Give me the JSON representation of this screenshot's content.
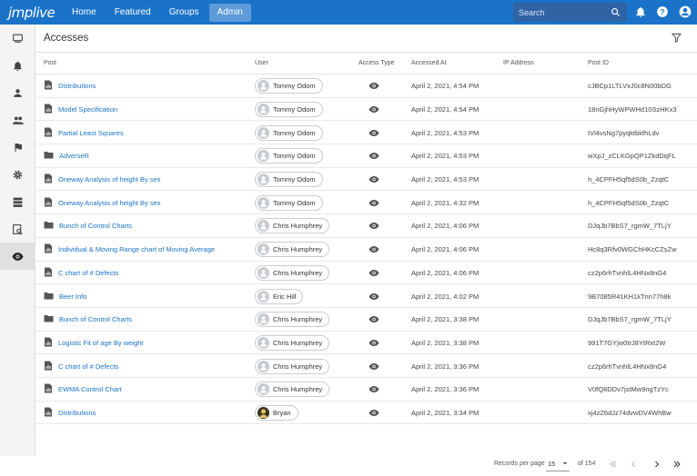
{
  "app": {
    "logo": "jmplive"
  },
  "nav": [
    {
      "label": "Home",
      "active": false
    },
    {
      "label": "Featured",
      "active": false
    },
    {
      "label": "Groups",
      "active": false
    },
    {
      "label": "Admin",
      "active": true
    }
  ],
  "search": {
    "placeholder": "Search"
  },
  "page": {
    "title": "Accesses"
  },
  "columns": {
    "post": "Post",
    "user": "User",
    "access_type": "Access Type",
    "accessed_at": "Accessed At",
    "ip": "IP Address",
    "post_id": "Post ID"
  },
  "rows": [
    {
      "icon": "report-icon",
      "post": "Distributions",
      "user": "Tommy Odom",
      "avatar": "default",
      "at": "April 2, 2021, 4:54 PM",
      "ip": "",
      "pid": "cJBCp1LTLVxJ0c8N00bDG"
    },
    {
      "icon": "report-icon",
      "post": "Model Specification",
      "user": "Tommy Odom",
      "avatar": "default",
      "at": "April 2, 2021, 4:54 PM",
      "ip": "",
      "pid": "18nGjhHyWPWHd10SzHKx3"
    },
    {
      "icon": "report-icon",
      "post": "Partial Least Squares",
      "user": "Tommy Odom",
      "avatar": "default",
      "at": "April 2, 2021, 4:53 PM",
      "ip": "",
      "pid": "tVl4vsNg7pyqktbkfhLdv"
    },
    {
      "icon": "folder-icon",
      "post": "AdverseR",
      "user": "Tommy Odom",
      "avatar": "default",
      "at": "April 2, 2021, 4:53 PM",
      "ip": "",
      "pid": "wXpJ_zCLKGpQP1ZkdDqFL"
    },
    {
      "icon": "report-icon",
      "post": "Oneway Analysis of height By sex",
      "user": "Tommy Odom",
      "avatar": "default",
      "at": "April 2, 2021, 4:53 PM",
      "ip": "",
      "pid": "h_4CPFH5qf5dS0b_ZzqtC"
    },
    {
      "icon": "report-icon",
      "post": "Oneway Analysis of height By sex",
      "user": "Tommy Odom",
      "avatar": "default",
      "at": "April 2, 2021, 4:32 PM",
      "ip": "",
      "pid": "h_4CPFH5qf5dS0b_ZzqtC"
    },
    {
      "icon": "folder-icon",
      "post": "Bunch of Control Charts",
      "user": "Chris Humphrey",
      "avatar": "default",
      "at": "April 2, 2021, 4:06 PM",
      "ip": "",
      "pid": "DJqJb7BbS7_rgmW_7TLjY"
    },
    {
      "icon": "report-icon",
      "post": "Individual & Moving Range chart of Moving Average",
      "user": "Chris Humphrey",
      "avatar": "default",
      "at": "April 2, 2021, 4:06 PM",
      "ip": "",
      "pid": "Hc8q3Rfv0WGChHKcCZsZw"
    },
    {
      "icon": "report-icon",
      "post": "C chart of # Defects",
      "user": "Chris Humphrey",
      "avatar": "default",
      "at": "April 2, 2021, 4:06 PM",
      "ip": "",
      "pid": "cz2p6rhTvnhlL4HNx8nG4"
    },
    {
      "icon": "folder-icon",
      "post": "Beer Info",
      "user": "Eric Hill",
      "avatar": "default",
      "at": "April 2, 2021, 4:02 PM",
      "ip": "",
      "pid": "9B7085R41KH1kTnn77h8k"
    },
    {
      "icon": "folder-icon",
      "post": "Bunch of Control Charts",
      "user": "Chris Humphrey",
      "avatar": "default",
      "at": "April 2, 2021, 3:38 PM",
      "ip": "",
      "pid": "DJqJb7BbS7_rgmW_7TLjY"
    },
    {
      "icon": "report-icon",
      "post": "Logistic Fit of age By weight",
      "user": "Chris Humphrey",
      "avatar": "default",
      "at": "April 2, 2021, 3:38 PM",
      "ip": "",
      "pid": "991T7GYjw0trJ8YtRxt2W"
    },
    {
      "icon": "report-icon",
      "post": "C chart of # Defects",
      "user": "Chris Humphrey",
      "avatar": "default",
      "at": "April 2, 2021, 3:36 PM",
      "ip": "",
      "pid": "cz2p6rhTvnhlL4HNx8nG4"
    },
    {
      "icon": "report-icon",
      "post": "EWMA Control Chart",
      "user": "Chris Humphrey",
      "avatar": "default",
      "at": "April 2, 2021, 3:36 PM",
      "ip": "",
      "pid": "V0fQ8DDv7jstMw9ngTzYc"
    },
    {
      "icon": "report-icon",
      "post": "Distributions",
      "user": "Bryan",
      "avatar": "photo",
      "at": "April 2, 2021, 3:34 PM",
      "ip": "",
      "pid": "xj4zZ6dJz74dvwDV4WhBw"
    }
  ],
  "pagination": {
    "label": "Records per page",
    "per_page": "15",
    "of_text": "of 154"
  },
  "colors": {
    "topbar": "#1a73c8",
    "link": "#1a73c8",
    "active_nav": "#5d9ad8"
  }
}
